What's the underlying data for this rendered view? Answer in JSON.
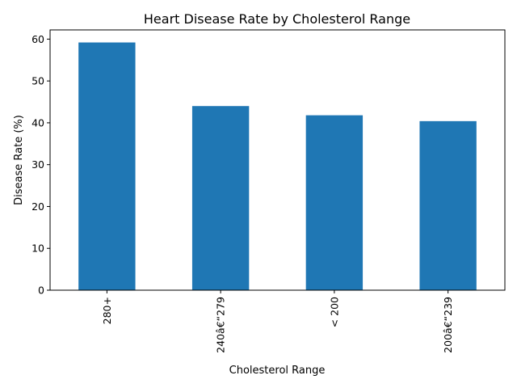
{
  "chart_data": {
    "type": "bar",
    "title": "Heart Disease Rate by Cholesterol Range",
    "xlabel": "Cholesterol Range",
    "ylabel": "Disease Rate (%)",
    "categories": [
      "280+",
      "240â€“279",
      "< 200",
      "200â€“239"
    ],
    "values": [
      59.2,
      44.0,
      41.8,
      40.4
    ],
    "ylim": [
      0,
      62.2
    ],
    "yticks": [
      0,
      10,
      20,
      30,
      40,
      50,
      60
    ],
    "bar_color": "#1f77b4",
    "grid": false,
    "legend": "none"
  }
}
